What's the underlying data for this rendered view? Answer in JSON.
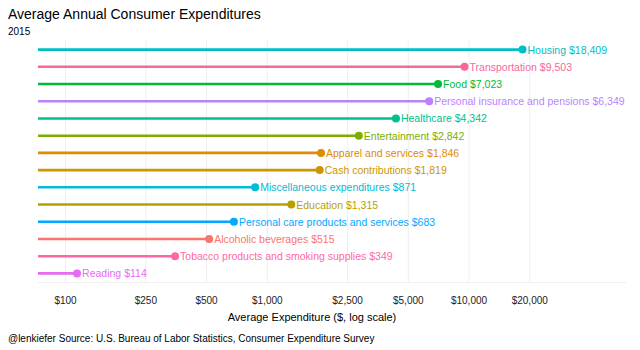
{
  "chart_data": {
    "type": "lollipop",
    "title": "Average Annual Consumer Expenditures",
    "subtitle": "2015",
    "x_label": "Average Expenditure ($, log scale)",
    "caption": "@lenkiefer Source: U.S. Bureau of Labor Statistics, Consumer Expenditure Survey",
    "orientation": "horizontal",
    "log": "x",
    "grid": true,
    "data_labels": true,
    "categories": [
      "Housing",
      "Transportation",
      "Food",
      "Personal insurance and pensions",
      "Healthcare",
      "Entertainment",
      "Apparel and services",
      "Cash contributions",
      "Miscellaneous expenditures",
      "Education",
      "Personal care products and services",
      "Alcoholic beverages",
      "Tobacco products and smoking supplies",
      "Reading"
    ],
    "values": [
      18409,
      9503,
      7023,
      6349,
      4342,
      2842,
      1846,
      1819,
      871,
      1315,
      683,
      515,
      349,
      114
    ],
    "value_labels": [
      "$18,409",
      "$9,503",
      "$7,023",
      "$6,349",
      "$4,342",
      "$2,842",
      "$1,846",
      "$1,819",
      "$871",
      "$1,315",
      "$683",
      "$515",
      "$349",
      "$114"
    ],
    "colors": [
      "#00BFC4",
      "#F8669E",
      "#00BA38",
      "#B983FF",
      "#00C08B",
      "#7CAE00",
      "#DE8C00",
      "#CD9600",
      "#00BCD8",
      "#B79F00",
      "#00A9FF",
      "#F8766D",
      "#FF67A4",
      "#E76BF3"
    ],
    "xlim": [
      73,
      60000
    ],
    "xticks": [
      {
        "value": 100,
        "label": "$100"
      },
      {
        "value": 250,
        "label": "$250"
      },
      {
        "value": 500,
        "label": "$500"
      },
      {
        "value": 1000,
        "label": "$1,000"
      },
      {
        "value": 2500,
        "label": "$2,500"
      },
      {
        "value": 5000,
        "label": "$5,000"
      },
      {
        "value": 10000,
        "label": "$10,000"
      },
      {
        "value": 20000,
        "label": "$20,000"
      }
    ]
  }
}
